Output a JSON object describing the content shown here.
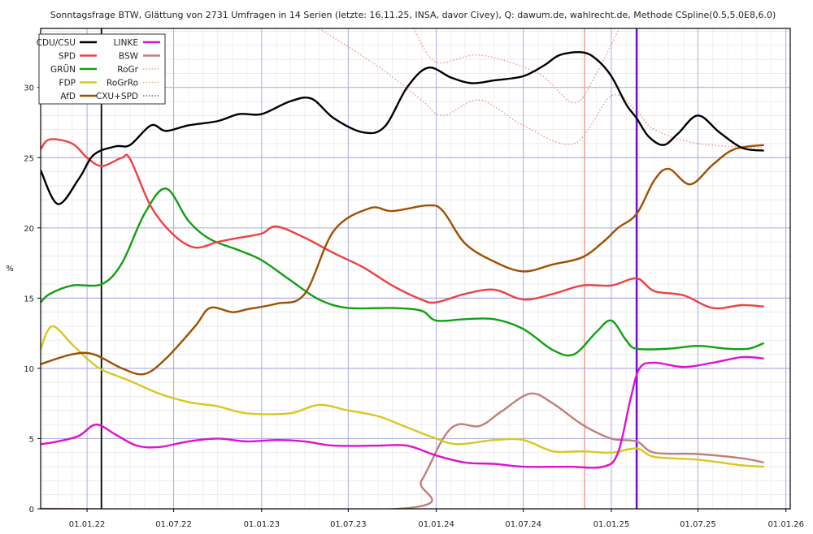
{
  "chart_data": {
    "type": "line",
    "title": "Sonntagsfrage BTW, Glättung von 2731 Umfragen in 14 Serien (letzte: 16.11.25, INSA, davor Civey), Q: dawum.de, wahlrecht.de, Methode CSpline(0.5,5.0E8,6.0)",
    "ylabel": "%",
    "xlabel": "",
    "xlim": [
      "2021-09-26",
      "2026-01-10"
    ],
    "ylim": [
      0,
      34.2
    ],
    "grid": true,
    "legend_position": "top-left",
    "x_ticks": [
      {
        "date": "2022-01-01",
        "label": "01.01.22"
      },
      {
        "date": "2022-07-01",
        "label": "01.07.22"
      },
      {
        "date": "2023-01-01",
        "label": "01.01.23"
      },
      {
        "date": "2023-07-01",
        "label": "01.07.23"
      },
      {
        "date": "2024-01-01",
        "label": "01.01.24"
      },
      {
        "date": "2024-07-01",
        "label": "01.07.24"
      },
      {
        "date": "2025-01-01",
        "label": "01.01.25"
      },
      {
        "date": "2025-07-01",
        "label": "01.07.25"
      },
      {
        "date": "2026-01-01",
        "label": "01.01.26"
      }
    ],
    "y_ticks": [
      0,
      5,
      10,
      15,
      20,
      25,
      30
    ],
    "markers": [
      {
        "date": "2022-01-31",
        "color": "#000000"
      },
      {
        "date": "2024-11-06",
        "color": "#f0a090"
      },
      {
        "date": "2025-02-23",
        "color": "#6a0dd8"
      }
    ],
    "series": [
      {
        "name": "CDU/CSU",
        "color": "#000000",
        "style": "solid",
        "points": [
          [
            "2021-09-26",
            24.1
          ],
          [
            "2021-11-01",
            21.7
          ],
          [
            "2021-12-15",
            23.5
          ],
          [
            "2022-01-15",
            25.2
          ],
          [
            "2022-03-01",
            25.8
          ],
          [
            "2022-04-01",
            25.9
          ],
          [
            "2022-05-15",
            27.3
          ],
          [
            "2022-06-15",
            26.9
          ],
          [
            "2022-08-01",
            27.3
          ],
          [
            "2022-10-01",
            27.6
          ],
          [
            "2022-11-15",
            28.1
          ],
          [
            "2023-01-01",
            28.1
          ],
          [
            "2023-03-01",
            29.0
          ],
          [
            "2023-04-15",
            29.2
          ],
          [
            "2023-06-01",
            27.8
          ],
          [
            "2023-08-01",
            26.8
          ],
          [
            "2023-09-15",
            27.2
          ],
          [
            "2023-11-01",
            30.0
          ],
          [
            "2023-12-15",
            31.4
          ],
          [
            "2024-02-01",
            30.7
          ],
          [
            "2024-03-15",
            30.3
          ],
          [
            "2024-05-01",
            30.5
          ],
          [
            "2024-07-01",
            30.8
          ],
          [
            "2024-08-15",
            31.6
          ],
          [
            "2024-09-15",
            32.3
          ],
          [
            "2024-11-01",
            32.5
          ],
          [
            "2024-12-01",
            32.0
          ],
          [
            "2025-01-01",
            30.8
          ],
          [
            "2025-02-01",
            28.8
          ],
          [
            "2025-02-23",
            27.8
          ],
          [
            "2025-03-20",
            26.5
          ],
          [
            "2025-04-20",
            25.9
          ],
          [
            "2025-05-20",
            26.7
          ],
          [
            "2025-07-01",
            28.0
          ],
          [
            "2025-08-15",
            26.8
          ],
          [
            "2025-10-01",
            25.7
          ],
          [
            "2025-11-16",
            25.5
          ]
        ]
      },
      {
        "name": "SPD",
        "color": "#f04040",
        "style": "solid",
        "points": [
          [
            "2021-09-26",
            25.6
          ],
          [
            "2021-10-15",
            26.3
          ],
          [
            "2021-12-01",
            26.0
          ],
          [
            "2022-01-01",
            25.0
          ],
          [
            "2022-02-01",
            24.4
          ],
          [
            "2022-03-15",
            25.0
          ],
          [
            "2022-04-01",
            24.9
          ],
          [
            "2022-05-15",
            21.5
          ],
          [
            "2022-07-01",
            19.5
          ],
          [
            "2022-08-15",
            18.6
          ],
          [
            "2022-10-01",
            19.0
          ],
          [
            "2022-11-15",
            19.3
          ],
          [
            "2023-01-01",
            19.6
          ],
          [
            "2023-02-01",
            20.1
          ],
          [
            "2023-04-01",
            19.3
          ],
          [
            "2023-06-01",
            18.2
          ],
          [
            "2023-08-01",
            17.2
          ],
          [
            "2023-10-01",
            15.9
          ],
          [
            "2023-12-01",
            14.9
          ],
          [
            "2024-01-01",
            14.7
          ],
          [
            "2024-03-01",
            15.3
          ],
          [
            "2024-05-01",
            15.6
          ],
          [
            "2024-07-01",
            14.9
          ],
          [
            "2024-09-01",
            15.3
          ],
          [
            "2024-11-01",
            15.9
          ],
          [
            "2025-01-01",
            15.9
          ],
          [
            "2025-02-23",
            16.4
          ],
          [
            "2025-04-01",
            15.5
          ],
          [
            "2025-06-01",
            15.2
          ],
          [
            "2025-08-01",
            14.3
          ],
          [
            "2025-10-01",
            14.5
          ],
          [
            "2025-11-16",
            14.4
          ]
        ]
      },
      {
        "name": "GRÜN",
        "color": "#10a010",
        "style": "solid",
        "points": [
          [
            "2021-09-26",
            14.7
          ],
          [
            "2021-10-15",
            15.3
          ],
          [
            "2021-12-01",
            15.9
          ],
          [
            "2022-02-01",
            16.0
          ],
          [
            "2022-03-15",
            17.5
          ],
          [
            "2022-05-01",
            21.0
          ],
          [
            "2022-06-15",
            22.8
          ],
          [
            "2022-08-01",
            20.5
          ],
          [
            "2022-09-15",
            19.2
          ],
          [
            "2022-11-15",
            18.4
          ],
          [
            "2023-01-01",
            17.7
          ],
          [
            "2023-03-01",
            16.3
          ],
          [
            "2023-05-01",
            14.9
          ],
          [
            "2023-07-01",
            14.3
          ],
          [
            "2023-10-01",
            14.3
          ],
          [
            "2023-12-01",
            14.1
          ],
          [
            "2024-01-01",
            13.4
          ],
          [
            "2024-03-01",
            13.5
          ],
          [
            "2024-05-01",
            13.5
          ],
          [
            "2024-07-01",
            12.8
          ],
          [
            "2024-09-01",
            11.3
          ],
          [
            "2024-10-15",
            11.0
          ],
          [
            "2024-12-01",
            12.6
          ],
          [
            "2025-01-01",
            13.4
          ],
          [
            "2025-02-01",
            12.0
          ],
          [
            "2025-02-23",
            11.4
          ],
          [
            "2025-05-01",
            11.4
          ],
          [
            "2025-07-01",
            11.6
          ],
          [
            "2025-09-01",
            11.4
          ],
          [
            "2025-10-15",
            11.4
          ],
          [
            "2025-11-16",
            11.8
          ]
        ]
      },
      {
        "name": "FDP",
        "color": "#d8c820",
        "style": "solid",
        "points": [
          [
            "2021-09-26",
            11.4
          ],
          [
            "2021-10-20",
            13.0
          ],
          [
            "2021-12-01",
            11.7
          ],
          [
            "2022-01-01",
            10.7
          ],
          [
            "2022-02-01",
            9.9
          ],
          [
            "2022-04-01",
            9.1
          ],
          [
            "2022-06-01",
            8.2
          ],
          [
            "2022-08-01",
            7.6
          ],
          [
            "2022-10-01",
            7.3
          ],
          [
            "2022-12-01",
            6.8
          ],
          [
            "2023-03-01",
            6.8
          ],
          [
            "2023-05-01",
            7.4
          ],
          [
            "2023-07-01",
            7.0
          ],
          [
            "2023-09-01",
            6.6
          ],
          [
            "2023-11-01",
            5.8
          ],
          [
            "2024-01-01",
            5.0
          ],
          [
            "2024-02-15",
            4.6
          ],
          [
            "2024-05-01",
            4.9
          ],
          [
            "2024-07-01",
            4.9
          ],
          [
            "2024-09-01",
            4.1
          ],
          [
            "2024-11-01",
            4.1
          ],
          [
            "2025-01-01",
            4.0
          ],
          [
            "2025-02-23",
            4.3
          ],
          [
            "2025-04-01",
            3.7
          ],
          [
            "2025-07-01",
            3.5
          ],
          [
            "2025-10-01",
            3.1
          ],
          [
            "2025-11-16",
            3.0
          ]
        ]
      },
      {
        "name": "AfD",
        "color": "#a05000",
        "style": "solid",
        "points": [
          [
            "2021-09-26",
            10.3
          ],
          [
            "2021-12-01",
            11.0
          ],
          [
            "2022-01-15",
            11.0
          ],
          [
            "2022-03-15",
            10.0
          ],
          [
            "2022-05-01",
            9.6
          ],
          [
            "2022-06-15",
            10.7
          ],
          [
            "2022-08-15",
            13.0
          ],
          [
            "2022-09-15",
            14.3
          ],
          [
            "2022-11-01",
            14.0
          ],
          [
            "2022-12-01",
            14.2
          ],
          [
            "2023-02-01",
            14.6
          ],
          [
            "2023-04-01",
            15.3
          ],
          [
            "2023-06-01",
            19.8
          ],
          [
            "2023-08-15",
            21.4
          ],
          [
            "2023-10-01",
            21.2
          ],
          [
            "2023-12-15",
            21.6
          ],
          [
            "2024-01-15",
            21.2
          ],
          [
            "2024-03-01",
            18.9
          ],
          [
            "2024-05-01",
            17.6
          ],
          [
            "2024-07-01",
            16.9
          ],
          [
            "2024-09-01",
            17.4
          ],
          [
            "2024-11-01",
            17.9
          ],
          [
            "2024-12-15",
            19.0
          ],
          [
            "2025-01-15",
            20.0
          ],
          [
            "2025-02-23",
            21.0
          ],
          [
            "2025-04-01",
            23.4
          ],
          [
            "2025-05-01",
            24.2
          ],
          [
            "2025-06-15",
            23.1
          ],
          [
            "2025-08-01",
            24.5
          ],
          [
            "2025-09-15",
            25.6
          ],
          [
            "2025-11-16",
            25.9
          ]
        ]
      },
      {
        "name": "LINKE",
        "color": "#e010d0",
        "style": "solid",
        "points": [
          [
            "2021-09-26",
            4.6
          ],
          [
            "2021-11-01",
            4.8
          ],
          [
            "2021-12-15",
            5.2
          ],
          [
            "2022-01-20",
            6.0
          ],
          [
            "2022-03-01",
            5.3
          ],
          [
            "2022-04-15",
            4.5
          ],
          [
            "2022-06-01",
            4.4
          ],
          [
            "2022-08-01",
            4.8
          ],
          [
            "2022-10-01",
            5.0
          ],
          [
            "2022-12-01",
            4.8
          ],
          [
            "2023-02-01",
            4.9
          ],
          [
            "2023-04-01",
            4.8
          ],
          [
            "2023-06-01",
            4.5
          ],
          [
            "2023-09-01",
            4.5
          ],
          [
            "2023-11-01",
            4.5
          ],
          [
            "2024-01-01",
            3.8
          ],
          [
            "2024-03-01",
            3.3
          ],
          [
            "2024-05-01",
            3.2
          ],
          [
            "2024-07-01",
            3.0
          ],
          [
            "2024-10-01",
            3.0
          ],
          [
            "2024-12-15",
            3.0
          ],
          [
            "2025-01-15",
            4.0
          ],
          [
            "2025-02-10",
            7.8
          ],
          [
            "2025-03-01",
            10.0
          ],
          [
            "2025-04-01",
            10.4
          ],
          [
            "2025-06-01",
            10.1
          ],
          [
            "2025-08-01",
            10.4
          ],
          [
            "2025-10-01",
            10.8
          ],
          [
            "2025-11-16",
            10.7
          ]
        ]
      },
      {
        "name": "BSW",
        "color": "#c08078",
        "style": "solid",
        "points": [
          [
            "2021-09-26",
            0
          ],
          [
            "2023-10-15",
            0
          ],
          [
            "2023-12-01",
            2.0
          ],
          [
            "2024-01-15",
            5.0
          ],
          [
            "2024-02-15",
            6.0
          ],
          [
            "2024-04-01",
            5.9
          ],
          [
            "2024-05-15",
            6.9
          ],
          [
            "2024-07-15",
            8.2
          ],
          [
            "2024-09-01",
            7.5
          ],
          [
            "2024-11-01",
            6.0
          ],
          [
            "2025-01-01",
            5.0
          ],
          [
            "2025-02-23",
            4.8
          ],
          [
            "2025-04-01",
            4.0
          ],
          [
            "2025-07-01",
            3.9
          ],
          [
            "2025-10-01",
            3.6
          ],
          [
            "2025-11-16",
            3.3
          ]
        ]
      },
      {
        "name": "RoGr",
        "color": "#f0a090",
        "style": "dotted",
        "points": [
          [
            "2023-05-01",
            34.2
          ],
          [
            "2023-09-01",
            31.5
          ],
          [
            "2023-12-01",
            29.1
          ],
          [
            "2024-01-15",
            28.0
          ],
          [
            "2024-04-01",
            29.1
          ],
          [
            "2024-07-01",
            27.3
          ],
          [
            "2024-10-15",
            26.0
          ],
          [
            "2025-01-01",
            29.4
          ],
          [
            "2025-02-23",
            28.3
          ],
          [
            "2025-04-01",
            27.0
          ],
          [
            "2025-07-01",
            26.0
          ],
          [
            "2025-11-16",
            25.7
          ]
        ]
      },
      {
        "name": "RoGrRo",
        "color": "#f0a090",
        "style": "dotted",
        "points": [
          [
            "2023-11-15",
            34.2
          ],
          [
            "2024-01-01",
            31.8
          ],
          [
            "2024-04-01",
            32.3
          ],
          [
            "2024-08-01",
            31.0
          ],
          [
            "2024-10-15",
            28.9
          ],
          [
            "2024-12-01",
            31.0
          ],
          [
            "2025-01-20",
            34.4
          ]
        ]
      },
      {
        "name": "CXU+SPD",
        "color": "#707070",
        "style": "dotted",
        "points": []
      }
    ]
  }
}
